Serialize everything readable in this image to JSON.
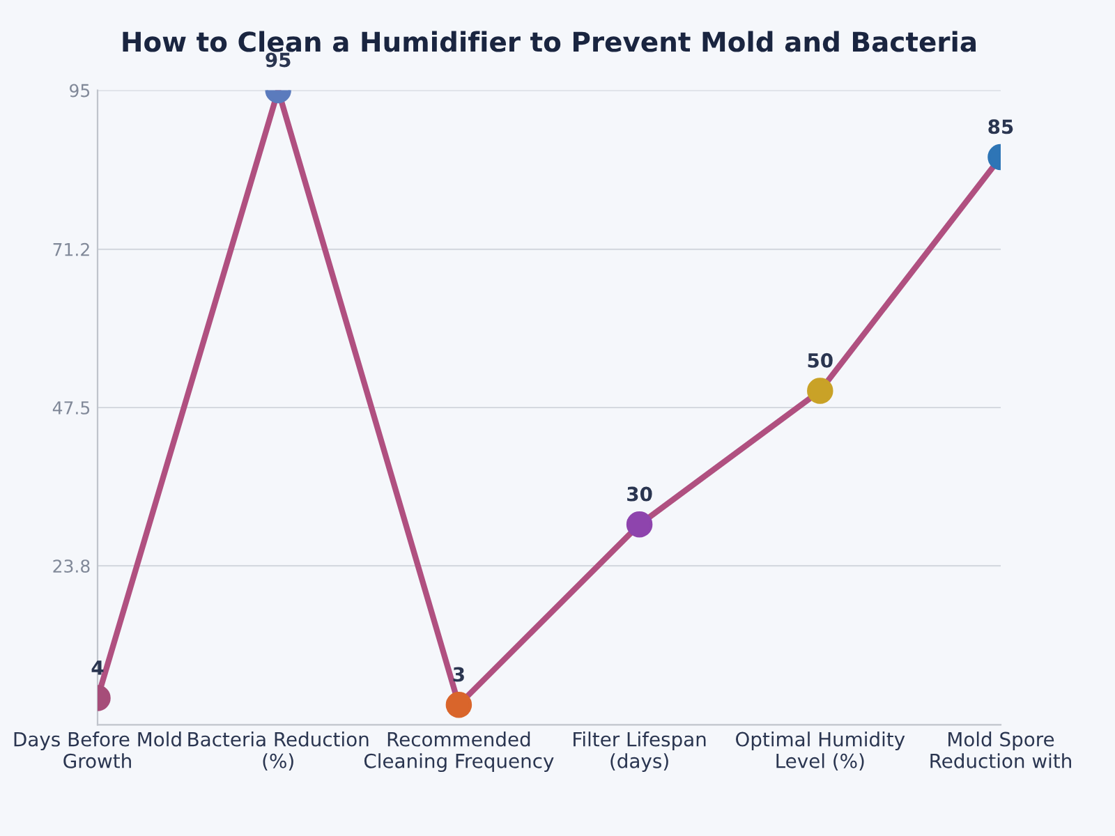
{
  "chart_data": {
    "type": "line",
    "title": "How to Clean a Humidifier to Prevent Mold and Bacteria",
    "categories": [
      "Days Before Mold Growth",
      "Bacteria Reduction (%)",
      "Recommended Cleaning Frequency",
      "Filter Lifespan (days)",
      "Optimal Humidity Level (%)",
      "Mold Spore Reduction with"
    ],
    "series": [
      {
        "color": "#b05080",
        "values": [
          4,
          95,
          3,
          30,
          50,
          85
        ],
        "colors": [
          "#a64d79",
          "#5b7bbd",
          "#d9652b",
          "#8e44ad",
          "#c9a227",
          "#2e75b6"
        ]
      }
    ],
    "ylim": [
      0,
      95
    ],
    "yticks": [
      23.8,
      47.5,
      71.2,
      95
    ],
    "grid": "y",
    "marker": "circle",
    "line_style": "solid",
    "data_labels": true
  }
}
